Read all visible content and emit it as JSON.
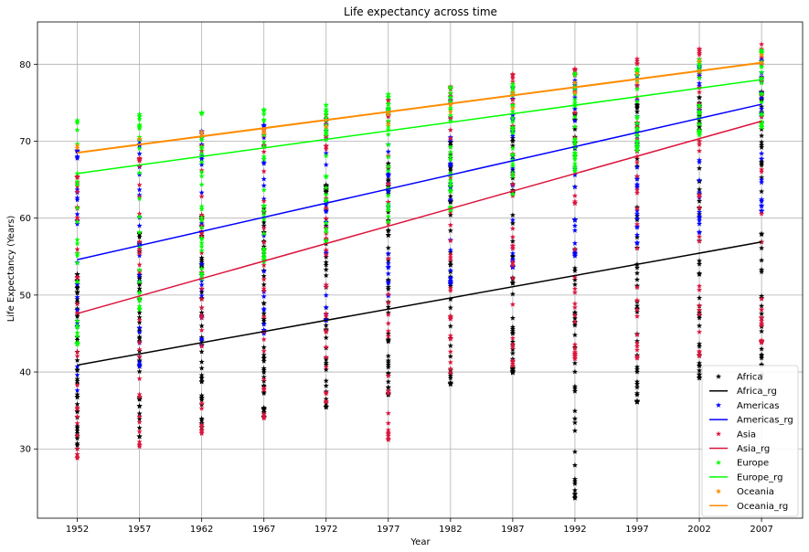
{
  "chart_data": {
    "type": "scatter",
    "title": "Life expectancy across time",
    "xlabel": "Year",
    "ylabel": "Life Expectancy (Years)",
    "x_ticks": [
      1952,
      1957,
      1962,
      1967,
      1972,
      1977,
      1982,
      1987,
      1992,
      1997,
      2002,
      2007
    ],
    "y_ticks": [
      30,
      40,
      50,
      60,
      70,
      80
    ],
    "xlim": [
      1948.8,
      2010.3
    ],
    "ylim": [
      21.0,
      85.5
    ],
    "grid": true,
    "legend_position": "bottom-right",
    "point_marker": "star",
    "series": [
      {
        "name": "Africa",
        "color": "#000000",
        "points_ranges": [
          {
            "year": 1952,
            "min": 30.0,
            "max": 52.7,
            "n": 52
          },
          {
            "year": 1957,
            "min": 31.6,
            "max": 58.1,
            "n": 52
          },
          {
            "year": 1962,
            "min": 32.8,
            "max": 60.2,
            "n": 52
          },
          {
            "year": 1967,
            "min": 34.1,
            "max": 61.6,
            "n": 52
          },
          {
            "year": 1972,
            "min": 35.4,
            "max": 64.3,
            "n": 52
          },
          {
            "year": 1977,
            "min": 37.0,
            "max": 67.1,
            "n": 52
          },
          {
            "year": 1982,
            "min": 38.4,
            "max": 69.9,
            "n": 52
          },
          {
            "year": 1987,
            "min": 39.9,
            "max": 71.9,
            "n": 52
          },
          {
            "year": 1992,
            "min": 23.6,
            "max": 73.6,
            "n": 52
          },
          {
            "year": 1997,
            "min": 36.1,
            "max": 74.8,
            "n": 52
          },
          {
            "year": 2002,
            "min": 39.2,
            "max": 75.7,
            "n": 52
          },
          {
            "year": 2007,
            "min": 39.6,
            "max": 76.4,
            "n": 52
          }
        ]
      },
      {
        "name": "Africa_rg",
        "color": "#000000",
        "line": {
          "x": [
            1952,
            2007
          ],
          "y": [
            40.9,
            56.9
          ]
        }
      },
      {
        "name": "Americas",
        "color": "#0000ff",
        "points_ranges": [
          {
            "year": 1952,
            "min": 37.6,
            "max": 68.8,
            "n": 25
          },
          {
            "year": 1957,
            "min": 40.7,
            "max": 70.0,
            "n": 25
          },
          {
            "year": 1962,
            "min": 43.4,
            "max": 71.3,
            "n": 25
          },
          {
            "year": 1967,
            "min": 45.0,
            "max": 72.1,
            "n": 25
          },
          {
            "year": 1972,
            "min": 46.7,
            "max": 72.9,
            "n": 25
          },
          {
            "year": 1977,
            "min": 49.9,
            "max": 74.2,
            "n": 25
          },
          {
            "year": 1982,
            "min": 51.5,
            "max": 75.8,
            "n": 25
          },
          {
            "year": 1987,
            "min": 53.6,
            "max": 76.9,
            "n": 25
          },
          {
            "year": 1992,
            "min": 55.1,
            "max": 77.9,
            "n": 25
          },
          {
            "year": 1997,
            "min": 56.7,
            "max": 78.6,
            "n": 25
          },
          {
            "year": 2002,
            "min": 58.1,
            "max": 79.8,
            "n": 25
          },
          {
            "year": 2007,
            "min": 60.9,
            "max": 80.7,
            "n": 25
          }
        ]
      },
      {
        "name": "Americas_rg",
        "color": "#0000ff",
        "line": {
          "x": [
            1952,
            2007
          ],
          "y": [
            54.6,
            74.8
          ]
        }
      },
      {
        "name": "Asia",
        "color": "#dc143c",
        "points_ranges": [
          {
            "year": 1952,
            "min": 28.8,
            "max": 65.4,
            "n": 33
          },
          {
            "year": 1957,
            "min": 30.3,
            "max": 67.8,
            "n": 33
          },
          {
            "year": 1962,
            "min": 32.0,
            "max": 69.4,
            "n": 33
          },
          {
            "year": 1967,
            "min": 34.0,
            "max": 71.4,
            "n": 33
          },
          {
            "year": 1972,
            "min": 36.1,
            "max": 73.4,
            "n": 33
          },
          {
            "year": 1977,
            "min": 31.2,
            "max": 75.4,
            "n": 33
          },
          {
            "year": 1982,
            "min": 39.9,
            "max": 77.1,
            "n": 33
          },
          {
            "year": 1987,
            "min": 40.8,
            "max": 78.7,
            "n": 33
          },
          {
            "year": 1992,
            "min": 41.7,
            "max": 79.4,
            "n": 33
          },
          {
            "year": 1997,
            "min": 41.8,
            "max": 80.7,
            "n": 33
          },
          {
            "year": 2002,
            "min": 42.1,
            "max": 82.0,
            "n": 33
          },
          {
            "year": 2007,
            "min": 43.8,
            "max": 82.6,
            "n": 33
          }
        ]
      },
      {
        "name": "Asia_rg",
        "color": "#dc143c",
        "line": {
          "x": [
            1952,
            2007
          ],
          "y": [
            47.6,
            72.6
          ]
        }
      },
      {
        "name": "Europe",
        "color": "#00ff00",
        "points_ranges": [
          {
            "year": 1952,
            "min": 43.6,
            "max": 72.7,
            "n": 30
          },
          {
            "year": 1957,
            "min": 48.1,
            "max": 73.5,
            "n": 30
          },
          {
            "year": 1962,
            "min": 52.1,
            "max": 73.7,
            "n": 30
          },
          {
            "year": 1967,
            "min": 54.3,
            "max": 74.1,
            "n": 30
          },
          {
            "year": 1972,
            "min": 57.0,
            "max": 74.7,
            "n": 30
          },
          {
            "year": 1977,
            "min": 59.5,
            "max": 76.1,
            "n": 30
          },
          {
            "year": 1982,
            "min": 61.0,
            "max": 77.0,
            "n": 30
          },
          {
            "year": 1987,
            "min": 63.1,
            "max": 77.4,
            "n": 30
          },
          {
            "year": 1992,
            "min": 66.1,
            "max": 78.8,
            "n": 30
          },
          {
            "year": 1997,
            "min": 68.8,
            "max": 79.4,
            "n": 30
          },
          {
            "year": 2002,
            "min": 70.8,
            "max": 80.6,
            "n": 30
          },
          {
            "year": 2007,
            "min": 71.8,
            "max": 81.8,
            "n": 30
          }
        ]
      },
      {
        "name": "Europe_rg",
        "color": "#00ff00",
        "line": {
          "x": [
            1952,
            2007
          ],
          "y": [
            65.8,
            78.0
          ]
        }
      },
      {
        "name": "Oceania",
        "color": "#ff8c00",
        "points": [
          {
            "x": 1952,
            "y": 69.1
          },
          {
            "x": 1952,
            "y": 69.4
          },
          {
            "x": 1957,
            "y": 70.3
          },
          {
            "x": 1957,
            "y": 70.3
          },
          {
            "x": 1962,
            "y": 70.9
          },
          {
            "x": 1962,
            "y": 71.2
          },
          {
            "x": 1967,
            "y": 71.1
          },
          {
            "x": 1967,
            "y": 71.5
          },
          {
            "x": 1972,
            "y": 71.9
          },
          {
            "x": 1972,
            "y": 71.9
          },
          {
            "x": 1977,
            "y": 72.2
          },
          {
            "x": 1977,
            "y": 73.5
          },
          {
            "x": 1982,
            "y": 73.8
          },
          {
            "x": 1982,
            "y": 74.7
          },
          {
            "x": 1987,
            "y": 74.3
          },
          {
            "x": 1987,
            "y": 76.3
          },
          {
            "x": 1992,
            "y": 76.3
          },
          {
            "x": 1992,
            "y": 77.6
          },
          {
            "x": 1997,
            "y": 77.6
          },
          {
            "x": 1997,
            "y": 78.8
          },
          {
            "x": 2002,
            "y": 79.1
          },
          {
            "x": 2002,
            "y": 80.4
          },
          {
            "x": 2007,
            "y": 80.2
          },
          {
            "x": 2007,
            "y": 81.2
          }
        ]
      },
      {
        "name": "Oceania_rg",
        "color": "#ff8c00",
        "line": {
          "x": [
            1952,
            2007
          ],
          "y": [
            68.5,
            80.2
          ]
        }
      }
    ]
  }
}
